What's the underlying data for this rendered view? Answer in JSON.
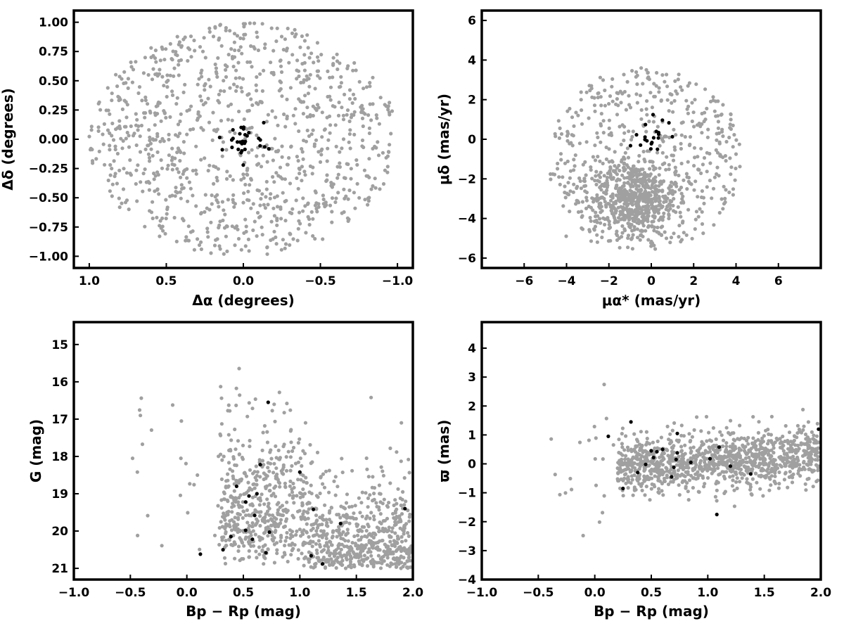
{
  "chart_data": [
    {
      "type": "scatter",
      "panel": "sky-positions",
      "xlabel": "Δα (degrees)",
      "ylabel": "Δδ (degrees)",
      "xlim": [
        1.1,
        -1.1
      ],
      "ylim": [
        -1.1,
        1.1
      ],
      "x_inverted": true,
      "xticks": [
        1.0,
        0.5,
        0.0,
        -0.5,
        -1.0
      ],
      "xtick_labels": [
        "1.0",
        "0.5",
        "0.0",
        "−0.5",
        "−1.0"
      ],
      "yticks": [
        1.0,
        0.75,
        0.5,
        0.25,
        0.0,
        -0.25,
        -0.5,
        -0.75,
        -1.0
      ],
      "ytick_labels": [
        "1.00",
        "0.75",
        "0.50",
        "0.25",
        "0.00",
        "−0.25",
        "−0.50",
        "−0.75",
        "−1.00"
      ],
      "grid": false,
      "series": [
        {
          "color": "#a0a0a0",
          "distribution": "uniform disk of radius 1.0",
          "count": 1000
        },
        {
          "color": "#000000",
          "distribution": "central clump, radius ~0.2",
          "count": 30
        }
      ]
    },
    {
      "type": "scatter",
      "panel": "proper-motions",
      "xlabel": "μα* (mas/yr)",
      "ylabel": "μδ (mas/yr)",
      "xlim": [
        -8,
        8
      ],
      "ylim": [
        -6.5,
        6.5
      ],
      "xticks": [
        -6,
        -4,
        -2,
        0,
        2,
        4,
        6
      ],
      "xtick_labels": [
        "−6",
        "−4",
        "−2",
        "0",
        "2",
        "4",
        "6"
      ],
      "yticks": [
        6,
        4,
        2,
        0,
        -2,
        -4,
        -6
      ],
      "ytick_labels": [
        "6",
        "4",
        "2",
        "0",
        "−2",
        "−4",
        "−6"
      ],
      "grid": false,
      "series": [
        {
          "color": "#a0a0a0",
          "distribution": "disk radius 5 centered (0,-1), dense clump near (-1,-3)",
          "count": 1100
        },
        {
          "color": "#000000",
          "distribution": "tight clump near (0,0.2)",
          "count": 20
        }
      ]
    },
    {
      "type": "scatter",
      "panel": "cmd-G",
      "xlabel": "Bp − Rp (mag)",
      "ylabel": "G (mag)",
      "xlim": [
        -1.0,
        2.0
      ],
      "ylim": [
        21.3,
        14.4
      ],
      "y_inverted": true,
      "xticks": [
        -1.0,
        -0.5,
        0.0,
        0.5,
        1.0,
        1.5,
        2.0
      ],
      "xtick_labels": [
        "−1.0",
        "−0.5",
        "0.0",
        "0.5",
        "1.0",
        "1.5",
        "2.0"
      ],
      "yticks": [
        21,
        20,
        19,
        18,
        17,
        16,
        15
      ],
      "ytick_labels": [
        "21",
        "20",
        "19",
        "18",
        "17",
        "16",
        "15"
      ],
      "grid": false,
      "series": [
        {
          "color": "#a0a0a0",
          "distribution": "faint red-giant/field band",
          "count": 1100
        },
        {
          "color": "#000000",
          "distribution": "members",
          "count": 24
        }
      ]
    },
    {
      "type": "scatter",
      "panel": "parallax",
      "xlabel": "Bp − Rp (mag)",
      "ylabel": "ϖ (mas)",
      "xlim": [
        -1.0,
        2.0
      ],
      "ylim": [
        -4.0,
        4.9
      ],
      "xticks": [
        -1.0,
        -0.5,
        0.0,
        0.5,
        1.0,
        1.5,
        2.0
      ],
      "xtick_labels": [
        "−1.0",
        "−0.5",
        "0.0",
        "0.5",
        "1.0",
        "1.5",
        "2.0"
      ],
      "yticks": [
        4,
        3,
        2,
        1,
        0,
        -1,
        -2,
        -3,
        -4
      ],
      "ytick_labels": [
        "4",
        "3",
        "2",
        "1",
        "0",
        "−1",
        "−2",
        "−3",
        "−4"
      ],
      "grid": false,
      "series": [
        {
          "color": "#a0a0a0",
          "distribution": "scatter around 0 widening to faint colors",
          "count": 1100
        },
        {
          "color": "#000000",
          "distribution": "members near 0",
          "count": 22
        }
      ]
    }
  ]
}
